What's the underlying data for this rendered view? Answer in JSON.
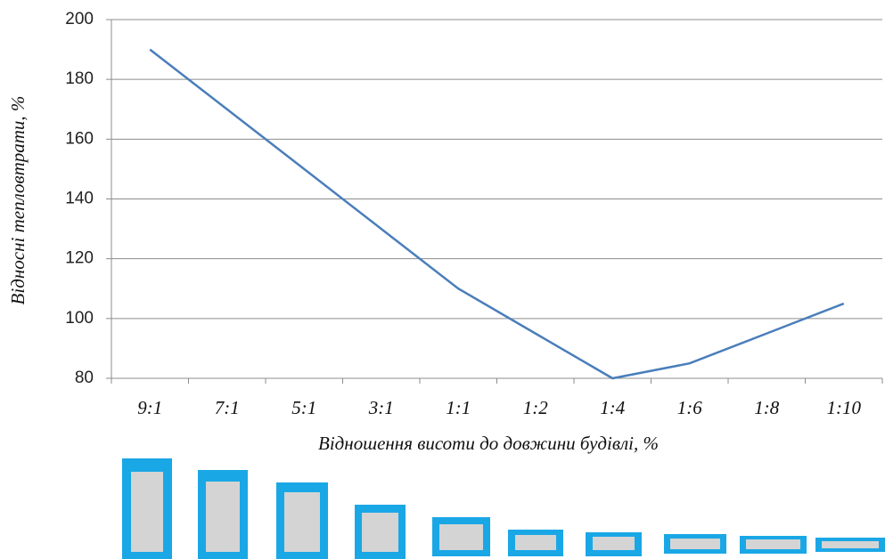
{
  "chart_data": {
    "type": "line",
    "x_label": "Відношення висоти до довжини будівлі, %",
    "y_label": "Відносні тепловтрати, %",
    "categories": [
      "9:1",
      "7:1",
      "5:1",
      "3:1",
      "1:1",
      "1:2",
      "1:4",
      "1:6",
      "1:8",
      "1:10"
    ],
    "values": [
      190,
      170,
      150,
      130,
      110,
      95,
      80,
      85,
      95,
      105
    ],
    "color": "#4a7ebb",
    "ylim": [
      80,
      200
    ],
    "yticks": [
      80,
      100,
      120,
      140,
      160,
      180,
      200
    ],
    "grid": true
  }
}
